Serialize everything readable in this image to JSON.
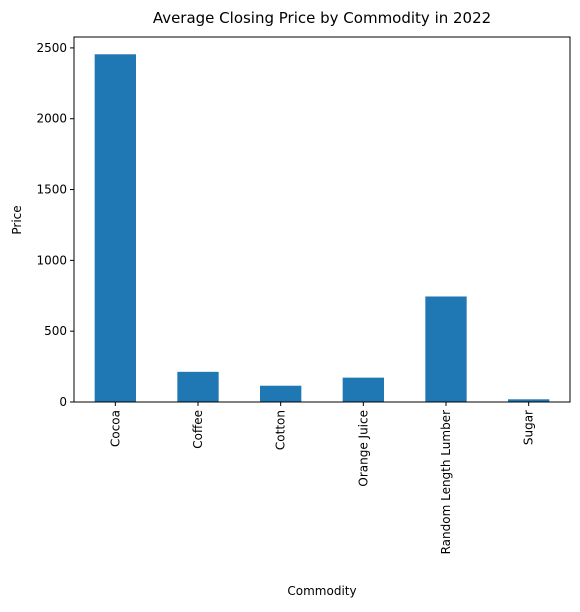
{
  "chart_data": {
    "type": "bar",
    "title": "Average Closing Price by Commodity in 2022",
    "xlabel": "Commodity",
    "ylabel": "Price",
    "categories": [
      "Cocoa",
      "Coffee",
      "Cotton",
      "Orange Juice",
      "Random Length Lumber",
      "Sugar"
    ],
    "values": [
      2455,
      213,
      115,
      172,
      745,
      19
    ],
    "ylim": [
      0,
      2577
    ],
    "yticks": [
      0,
      500,
      1000,
      1500,
      2000,
      2500
    ],
    "grid": false,
    "legend": "none",
    "bar_color": "#1f77b4"
  }
}
